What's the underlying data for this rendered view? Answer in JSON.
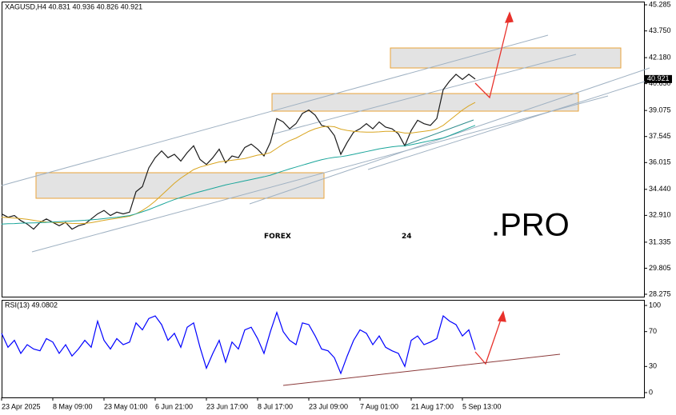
{
  "chart_data": [
    {
      "type": "line",
      "title": "XAGUSD,H4  40.831 40.936 40.826 40.921",
      "categories": [
        "23 Apr 2025",
        null,
        null,
        null,
        null,
        null,
        null,
        null,
        "8 May 09:00",
        null,
        null,
        null,
        null,
        null,
        null,
        null,
        "23 May 01:00",
        null,
        null,
        null,
        null,
        null,
        null,
        null,
        "6 Jun 21:00",
        null,
        null,
        null,
        null,
        null,
        null,
        null,
        "23 Jun 17:00",
        null,
        null,
        null,
        null,
        null,
        null,
        null,
        "8 Jul 17:00",
        null,
        null,
        null,
        null,
        null,
        null,
        null,
        "23 Jul 09:00",
        null,
        null,
        null,
        null,
        null,
        null,
        null,
        "7 Aug 01:00",
        null,
        null,
        null,
        null,
        null,
        null,
        null,
        "21 Aug 17:00",
        null,
        null,
        null,
        null,
        null,
        null,
        null,
        "5 Sep 13:00",
        null,
        null
      ],
      "series": [
        {
          "color": "#1b1b1b",
          "values": [
            33.0,
            32.8,
            32.9,
            32.6,
            32.4,
            32.1,
            32.5,
            32.7,
            32.5,
            32.3,
            32.5,
            32.1,
            32.3,
            32.4,
            32.7,
            33.0,
            33.2,
            32.9,
            33.1,
            33.0,
            33.1,
            34.3,
            34.6,
            35.7,
            36.3,
            36.7,
            36.3,
            36.5,
            36.1,
            36.6,
            37.0,
            36.2,
            35.9,
            36.3,
            36.8,
            36.0,
            36.4,
            36.3,
            36.9,
            37.1,
            36.8,
            36.4,
            37.2,
            38.6,
            38.4,
            38.0,
            38.3,
            38.9,
            39.1,
            38.8,
            38.2,
            38.1,
            37.6,
            36.5,
            37.2,
            37.8,
            38.0,
            38.3,
            38.0,
            38.4,
            38.1,
            38.0,
            37.7,
            37.0,
            37.9,
            38.5,
            38.3,
            38.2,
            38.6,
            40.3,
            40.8,
            41.2,
            40.9,
            41.2,
            40.921
          ]
        },
        {
          "color": "#d9a520",
          "values": [
            32.8,
            32.78,
            32.75,
            32.72,
            32.68,
            32.62,
            32.56,
            32.52,
            32.5,
            32.48,
            32.46,
            32.44,
            32.43,
            32.44,
            32.48,
            32.55,
            32.62,
            32.68,
            32.74,
            32.8,
            32.86,
            33.0,
            33.2,
            33.45,
            33.75,
            34.1,
            34.45,
            34.8,
            35.1,
            35.35,
            35.6,
            35.75,
            35.85,
            35.95,
            36.05,
            36.1,
            36.15,
            36.2,
            36.25,
            36.35,
            36.45,
            36.5,
            36.6,
            36.85,
            37.1,
            37.3,
            37.45,
            37.65,
            37.85,
            38.0,
            38.1,
            38.15,
            38.12,
            37.98,
            37.9,
            37.85,
            37.82,
            37.8,
            37.8,
            37.82,
            37.85,
            37.85,
            37.82,
            37.75,
            37.75,
            37.8,
            37.85,
            37.9,
            38.0,
            38.2,
            38.5,
            38.8,
            39.1,
            39.35,
            39.55
          ]
        },
        {
          "color": "#1aa59a",
          "values": [
            32.4,
            32.42,
            32.43,
            32.45,
            32.46,
            32.47,
            32.48,
            32.5,
            32.52,
            32.54,
            32.56,
            32.58,
            32.6,
            32.62,
            32.65,
            32.68,
            32.72,
            32.76,
            32.8,
            32.85,
            32.9,
            33.0,
            33.12,
            33.25,
            33.4,
            33.55,
            33.7,
            33.84,
            33.96,
            34.08,
            34.2,
            34.3,
            34.4,
            34.5,
            34.6,
            34.7,
            34.78,
            34.86,
            34.94,
            35.02,
            35.1,
            35.18,
            35.27,
            35.4,
            35.52,
            35.64,
            35.75,
            35.86,
            35.97,
            36.08,
            36.18,
            36.26,
            36.32,
            36.36,
            36.42,
            36.5,
            36.58,
            36.66,
            36.74,
            36.82,
            36.88,
            36.94,
            36.98,
            37.0,
            37.06,
            37.14,
            37.22,
            37.3,
            37.38,
            37.46,
            37.6,
            37.75,
            37.9,
            38.05,
            38.2
          ]
        }
      ],
      "last_price": 40.921,
      "ylim": [
        28.275,
        45.285
      ],
      "yticks": [
        45.285,
        {
          "value": 43.75,
          "label": "43.750"
        },
        {
          "value": 42.18,
          "label": "42.180"
        },
        {
          "value": 40.65,
          "label": "40.650"
        },
        39.075,
        37.545,
        36.015,
        {
          "value": 34.44,
          "label": "34.440"
        },
        {
          "value": 32.91,
          "label": "32.910"
        },
        31.335,
        29.805,
        28.275
      ],
      "watermark": [
        "FOREX",
        "24",
        ".PRO"
      ]
    },
    {
      "type": "line",
      "title": "RSI(13) 49.0802",
      "series": [
        {
          "color": "#0000ff",
          "values": [
            68,
            52,
            60,
            45,
            55,
            50,
            48,
            62,
            58,
            45,
            55,
            42,
            50,
            60,
            52,
            82,
            60,
            50,
            62,
            55,
            58,
            80,
            72,
            85,
            88,
            78,
            60,
            68,
            52,
            75,
            80,
            52,
            28,
            45,
            60,
            35,
            58,
            50,
            72,
            75,
            62,
            45,
            70,
            92,
            70,
            60,
            55,
            80,
            78,
            65,
            50,
            48,
            40,
            22,
            42,
            60,
            72,
            68,
            55,
            65,
            52,
            48,
            45,
            30,
            60,
            65,
            55,
            58,
            62,
            88,
            82,
            78,
            65,
            72,
            49.0802
          ]
        }
      ],
      "ylim": [
        0,
        100
      ],
      "yticks": [
        100,
        70,
        30,
        0
      ]
    }
  ]
}
